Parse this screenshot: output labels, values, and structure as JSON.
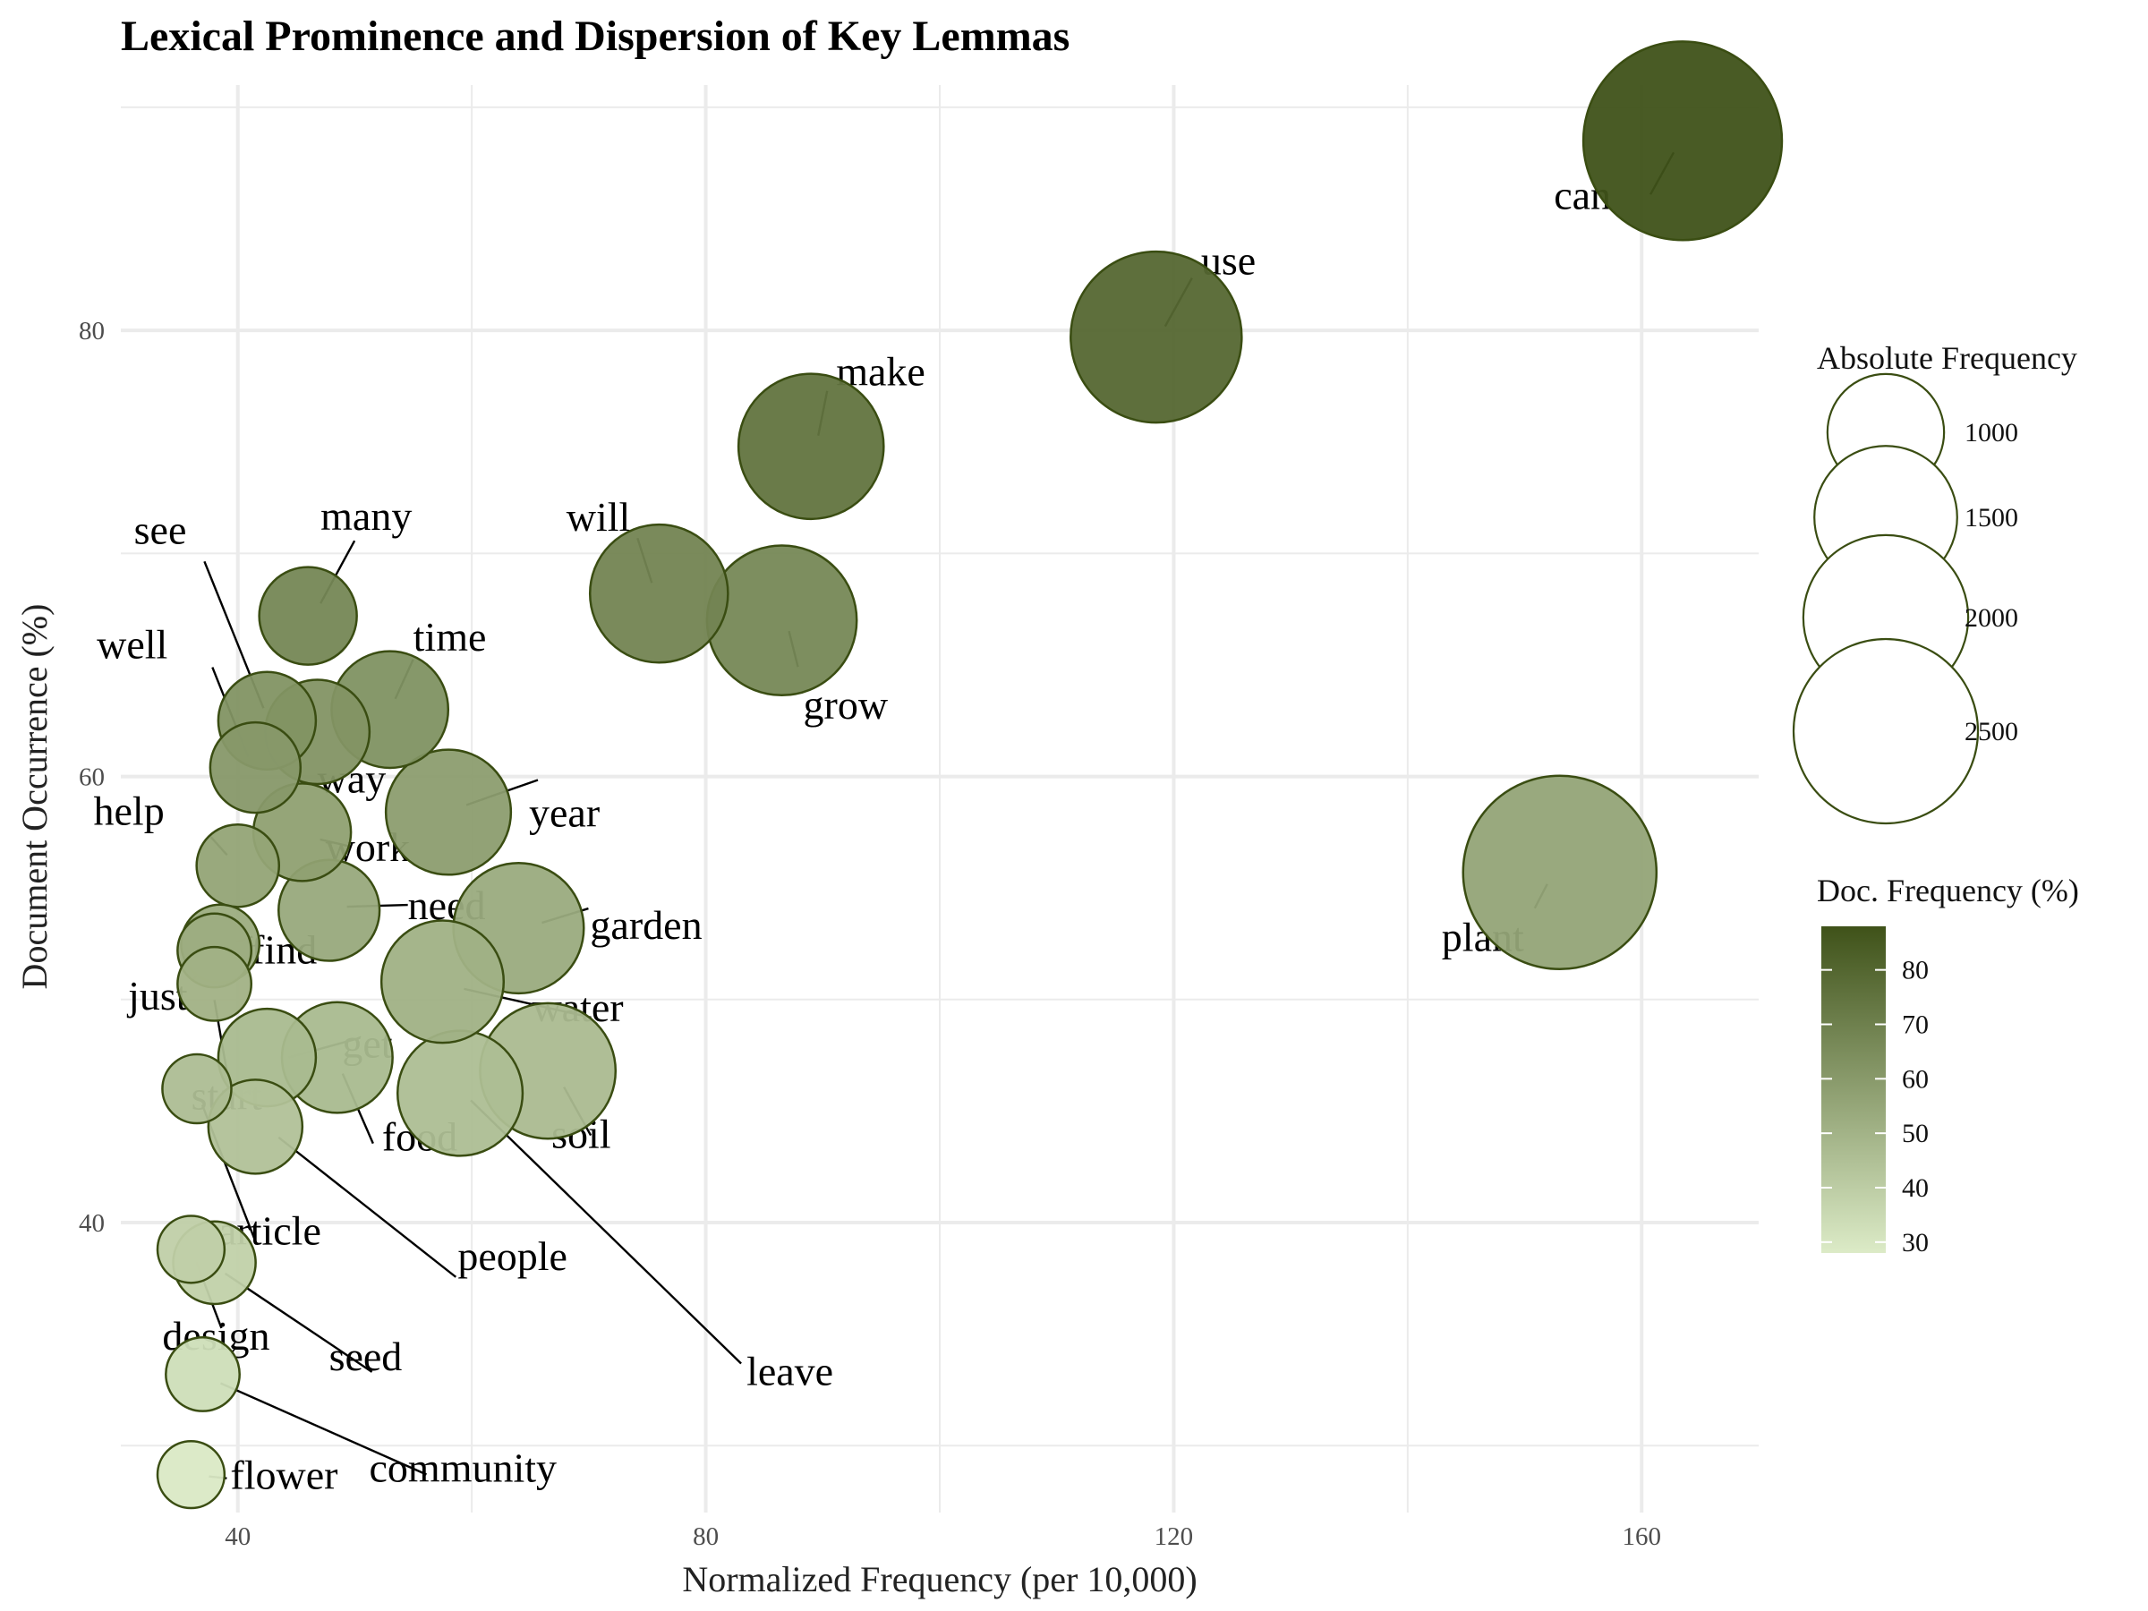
{
  "chart_data": {
    "type": "scatter",
    "title": "Lexical Prominence and Dispersion of Key Lemmas",
    "xlabel": "Normalized Frequency (per 10,000)",
    "ylabel": "Document Occurrence (%)",
    "xlim": [
      30,
      170
    ],
    "ylim": [
      27,
      91
    ],
    "xticks": [
      40,
      80,
      120,
      160
    ],
    "yticks": [
      40,
      60,
      80
    ],
    "grid": true,
    "legend_placement": "right",
    "size_legend": {
      "title": "Absolute Frequency",
      "values": [
        1000,
        1500,
        2000,
        2500
      ]
    },
    "color_legend": {
      "title": "Doc. Frequency (%)",
      "range": [
        28,
        88
      ],
      "ticks": [
        30,
        40,
        50,
        60,
        70,
        80
      ],
      "low_color": "#dcebc7",
      "high_color": "#3f5219"
    },
    "points": [
      {
        "label": "can",
        "x": 163.5,
        "y": 88.5,
        "size": 2900
      },
      {
        "label": "use",
        "x": 118.5,
        "y": 79.7,
        "size": 2150
      },
      {
        "label": "make",
        "x": 89.0,
        "y": 74.8,
        "size": 1550
      },
      {
        "label": "will",
        "x": 76.0,
        "y": 68.2,
        "size": 1400
      },
      {
        "label": "grow",
        "x": 86.5,
        "y": 67.0,
        "size": 1650
      },
      {
        "label": "plant",
        "x": 153.0,
        "y": 55.7,
        "size": 2750
      },
      {
        "label": "many",
        "x": 46.0,
        "y": 67.2,
        "size": 700
      },
      {
        "label": "see",
        "x": 42.5,
        "y": 62.5,
        "size": 700
      },
      {
        "label": "way",
        "x": 46.8,
        "y": 62.0,
        "size": 800
      },
      {
        "label": "time",
        "x": 53.0,
        "y": 63.0,
        "size": 1000
      },
      {
        "label": "well",
        "x": 41.5,
        "y": 60.4,
        "size": 600
      },
      {
        "label": "year",
        "x": 58.0,
        "y": 58.4,
        "size": 1150
      },
      {
        "label": "work",
        "x": 45.5,
        "y": 57.5,
        "size": 700
      },
      {
        "label": "help",
        "x": 40.0,
        "y": 56.0,
        "size": 500
      },
      {
        "label": "need",
        "x": 47.8,
        "y": 54.0,
        "size": 750
      },
      {
        "label": "garden",
        "x": 64.0,
        "y": 53.2,
        "size": 1250
      },
      {
        "label": "find",
        "x": 38.5,
        "y": 52.5,
        "size": 450
      },
      {
        "label": "just",
        "x": 38.0,
        "y": 52.2,
        "size": 400
      },
      {
        "label": "start",
        "x": 38.0,
        "y": 50.7,
        "size": 400
      },
      {
        "label": "water",
        "x": 57.5,
        "y": 50.8,
        "size": 1100
      },
      {
        "label": "get",
        "x": 42.5,
        "y": 47.4,
        "size": 700
      },
      {
        "label": "food",
        "x": 48.5,
        "y": 47.4,
        "size": 900
      },
      {
        "label": "soil",
        "x": 66.5,
        "y": 46.8,
        "size": 1350
      },
      {
        "label": "leave",
        "x": 59.0,
        "y": 45.8,
        "size": 1150
      },
      {
        "label": "article",
        "x": 36.5,
        "y": 46.0,
        "size": 350
      },
      {
        "label": "people",
        "x": 41.5,
        "y": 44.3,
        "size": 650
      },
      {
        "label": "design",
        "x": 36.0,
        "y": 38.8,
        "size": 330
      },
      {
        "label": "seed",
        "x": 38.0,
        "y": 38.2,
        "size": 500
      },
      {
        "label": "community",
        "x": 37.0,
        "y": 33.2,
        "size": 400
      },
      {
        "label": "flower",
        "x": 36.0,
        "y": 28.7,
        "size": 330
      }
    ]
  }
}
